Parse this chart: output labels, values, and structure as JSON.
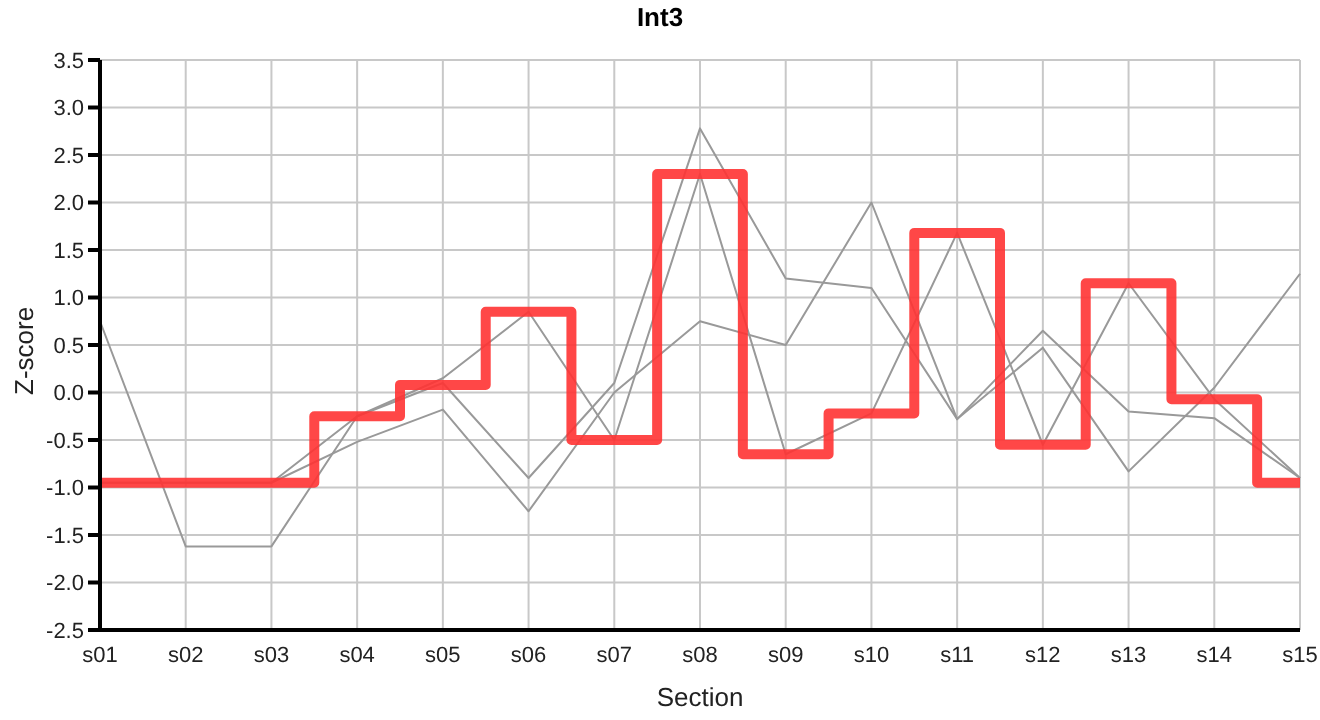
{
  "chart_data": {
    "type": "line",
    "title": "Int3",
    "xlabel": "Section",
    "ylabel": "Z-score",
    "categories": [
      "s01",
      "s02",
      "s03",
      "s04",
      "s05",
      "s06",
      "s07",
      "s08",
      "s09",
      "s10",
      "s11",
      "s12",
      "s13",
      "s14",
      "s15"
    ],
    "series": [
      {
        "color": "#999999",
        "values": [
          0.75,
          -1.62,
          -1.62,
          -0.25,
          0.15,
          0.85,
          -0.5,
          2.3,
          -0.65,
          -0.22,
          1.68,
          -0.55,
          1.15,
          -0.07,
          -0.9
        ]
      },
      {
        "color": "#999999",
        "values": [
          -0.95,
          -0.95,
          -0.95,
          -0.25,
          0.1,
          -0.9,
          0.1,
          2.78,
          1.2,
          1.1,
          -0.28,
          0.65,
          -0.2,
          -0.27,
          -0.9
        ]
      },
      {
        "color": "#999999",
        "values": [
          -0.95,
          -0.95,
          -0.95,
          -0.52,
          -0.18,
          -1.25,
          0.0,
          0.75,
          0.5,
          2.0,
          -0.28,
          0.47,
          -0.83,
          0.05,
          1.25
        ]
      },
      {
        "type": "step",
        "color": "#ff3333",
        "values": [
          -0.95,
          -0.95,
          -0.95,
          -0.25,
          0.08,
          0.85,
          -0.5,
          2.3,
          -0.65,
          -0.22,
          1.68,
          -0.55,
          1.15,
          -0.07,
          -0.95
        ]
      }
    ],
    "ylim": [
      -2.5,
      3.5
    ],
    "yticks": [
      -2.5,
      {
        "value": -2,
        "label": "-2.0"
      },
      -1.5,
      {
        "value": -1,
        "label": "-1.0"
      },
      -0.5,
      {
        "value": 0,
        "label": "0.0"
      },
      0.5,
      {
        "value": 1,
        "label": "1.0"
      },
      1.5,
      {
        "value": 2,
        "label": "2.0"
      },
      2.5,
      {
        "value": 3,
        "label": "3.0"
      },
      3.5
    ],
    "grid": true,
    "marker": "none",
    "line_style": "solid"
  }
}
